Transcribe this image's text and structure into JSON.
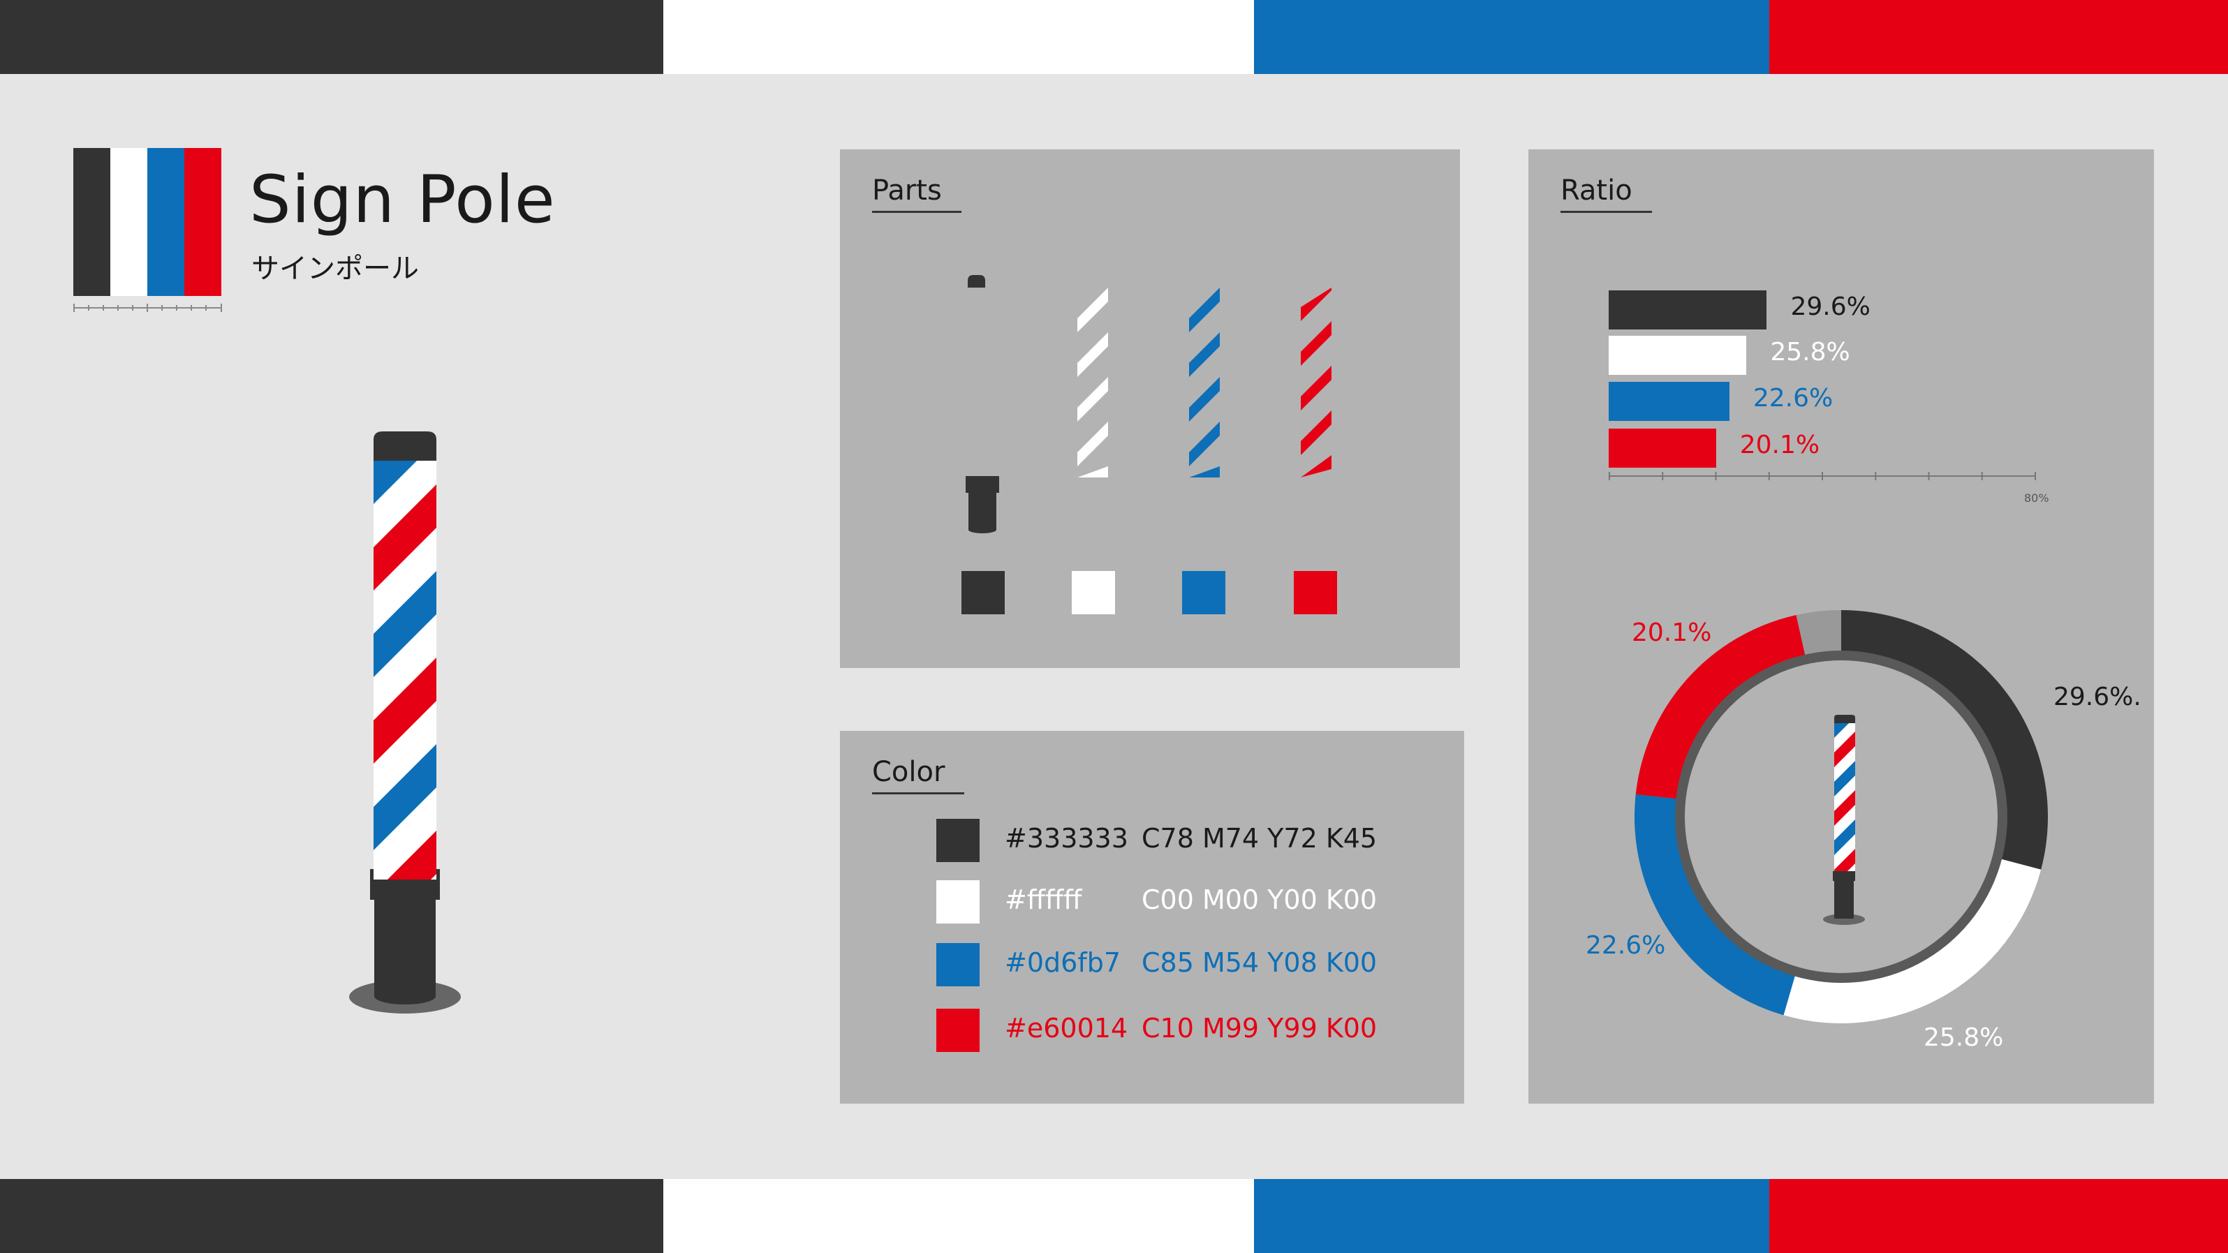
{
  "colors": {
    "dark": "#333333",
    "white": "#ffffff",
    "blue": "#0d6fb7",
    "red": "#e60014",
    "panel": "#b3b3b3",
    "background": "#e5e5e5"
  },
  "header": {
    "title": "Sign Pole",
    "subtitle": "サインポール"
  },
  "parts": {
    "title": "Parts",
    "items": [
      {
        "name": "pole-body",
        "color": "#333333"
      },
      {
        "name": "white-stripe",
        "color": "#ffffff"
      },
      {
        "name": "blue-stripe",
        "color": "#0d6fb7"
      },
      {
        "name": "red-stripe",
        "color": "#e60014"
      }
    ]
  },
  "color_table": {
    "title": "Color",
    "rows": [
      {
        "swatch": "#333333",
        "hex": "#333333",
        "cmyk": "C78 M74 Y72 K45",
        "text_color": "#1a1a1a"
      },
      {
        "swatch": "#ffffff",
        "hex": "#ffffff",
        "cmyk": "C00 M00 Y00 K00",
        "text_color": "#ffffff"
      },
      {
        "swatch": "#0d6fb7",
        "hex": "#0d6fb7",
        "cmyk": "C85 M54 Y08 K00",
        "text_color": "#0d6fb7"
      },
      {
        "swatch": "#e60014",
        "hex": "#e60014",
        "cmyk": "C10 M99 Y99 K00",
        "text_color": "#e60014"
      }
    ]
  },
  "ratio": {
    "title": "Ratio",
    "axis_label": "80%"
  },
  "chart_data": [
    {
      "type": "bar",
      "orientation": "horizontal",
      "categories": [
        "#333333",
        "#ffffff",
        "#0d6fb7",
        "#e60014"
      ],
      "values": [
        29.6,
        25.8,
        22.6,
        20.1
      ],
      "labels": [
        "29.6%",
        "25.8%",
        "22.6%",
        "20.1%"
      ],
      "colors": [
        "#333333",
        "#ffffff",
        "#0d6fb7",
        "#e60014"
      ],
      "label_colors": [
        "#1a1a1a",
        "#ffffff",
        "#0d6fb7",
        "#e60014"
      ],
      "xlim": [
        0,
        80
      ],
      "title": "",
      "xlabel": "",
      "ylabel": ""
    },
    {
      "type": "pie",
      "style": "donut",
      "categories": [
        "#333333",
        "#ffffff",
        "#0d6fb7",
        "#e60014"
      ],
      "values": [
        29.6,
        25.8,
        22.6,
        20.1
      ],
      "labels": [
        "29.6%.",
        "25.8%",
        "22.6%",
        "20.1%"
      ],
      "colors": [
        "#333333",
        "#ffffff",
        "#0d6fb7",
        "#e60014"
      ],
      "label_colors": [
        "#1a1a1a",
        "#ffffff",
        "#0d6fb7",
        "#e60014"
      ]
    }
  ]
}
